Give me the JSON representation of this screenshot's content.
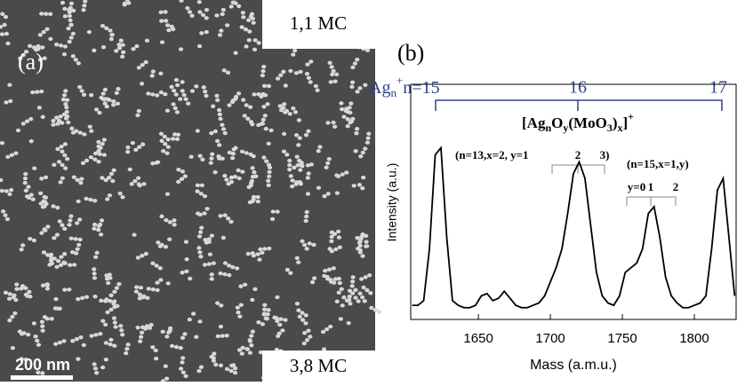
{
  "panel_a": {
    "label": "(a)",
    "top_label": "1,1 MC",
    "bottom_label": "3,8 MC",
    "scale_bar": "200 nm"
  },
  "panel_b": {
    "label": "(b)",
    "series_label": {
      "prefix": "Ag",
      "sub": "n",
      "sup": "+",
      "n15": "n=15",
      "n16": "16",
      "n17": "17"
    },
    "formula": [
      "[Ag",
      "n",
      "O",
      "y",
      "(MoO",
      "3",
      ")",
      "x",
      "]",
      "+"
    ],
    "annot1": "(n=13,x=2, y=1",
    "annot1_ticks": [
      "2",
      "3)"
    ],
    "annot2": "(n=15,x=1,y)",
    "annot2_ticks": [
      "y=0",
      "1",
      "2"
    ],
    "chart_data": {
      "type": "line",
      "x_label": "Mass (a.m.u.)",
      "y_label": "Intensity (a.u.)",
      "color": "#000000",
      "x": [
        1604,
        1608,
        1612,
        1616,
        1620,
        1624,
        1628,
        1632,
        1636,
        1640,
        1644,
        1648,
        1652,
        1656,
        1660,
        1664,
        1668,
        1672,
        1676,
        1680,
        1684,
        1688,
        1692,
        1696,
        1700,
        1704,
        1708,
        1712,
        1716,
        1720,
        1724,
        1728,
        1732,
        1736,
        1740,
        1744,
        1748,
        1752,
        1756,
        1760,
        1764,
        1768,
        1772,
        1776,
        1780,
        1784,
        1788,
        1792,
        1796,
        1800,
        1804,
        1808,
        1812,
        1816,
        1820,
        1824,
        1828
      ],
      "values": [
        0.06,
        0.06,
        0.08,
        0.3,
        0.7,
        0.73,
        0.35,
        0.08,
        0.06,
        0.05,
        0.05,
        0.06,
        0.1,
        0.11,
        0.08,
        0.09,
        0.12,
        0.09,
        0.06,
        0.05,
        0.05,
        0.06,
        0.07,
        0.1,
        0.16,
        0.22,
        0.3,
        0.45,
        0.62,
        0.67,
        0.6,
        0.4,
        0.2,
        0.1,
        0.07,
        0.06,
        0.1,
        0.2,
        0.22,
        0.24,
        0.3,
        0.45,
        0.48,
        0.35,
        0.18,
        0.1,
        0.07,
        0.05,
        0.05,
        0.06,
        0.07,
        0.1,
        0.3,
        0.55,
        0.6,
        0.35,
        0.1
      ],
      "xlim": [
        1603,
        1829
      ],
      "ylim": [
        0,
        1
      ],
      "xticks": [
        1650,
        1700,
        1750,
        1800
      ]
    }
  }
}
